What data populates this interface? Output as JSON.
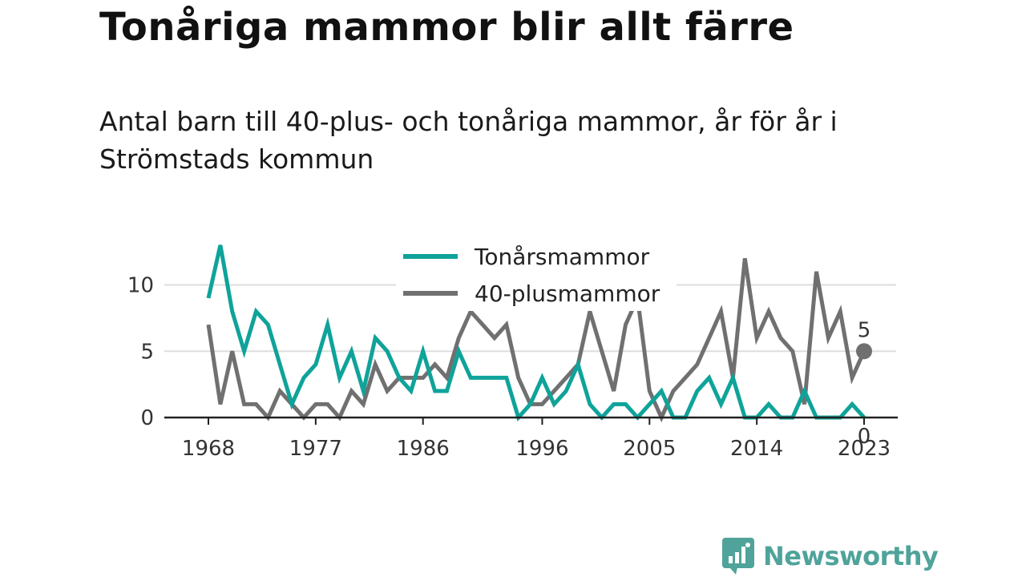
{
  "title": "Tonåriga mammor blir allt färre",
  "subtitle": "Antal barn till 40-plus- och tonåriga mammor, år för år i Strömstads kommun",
  "brand": {
    "name": "Newsworthy",
    "color": "#4fa39a",
    "icon": "chart-bubble-icon"
  },
  "chart_data": {
    "type": "line",
    "title": "",
    "xlabel": "",
    "ylabel": "",
    "x": [
      1968,
      1969,
      1970,
      1971,
      1972,
      1973,
      1974,
      1975,
      1976,
      1977,
      1978,
      1979,
      1980,
      1981,
      1982,
      1983,
      1984,
      1985,
      1986,
      1987,
      1988,
      1989,
      1990,
      1991,
      1992,
      1993,
      1994,
      1995,
      1996,
      1997,
      1998,
      1999,
      2000,
      2001,
      2002,
      2003,
      2004,
      2005,
      2006,
      2007,
      2008,
      2009,
      2010,
      2011,
      2012,
      2013,
      2014,
      2015,
      2016,
      2017,
      2018,
      2019,
      2020,
      2021,
      2022,
      2023
    ],
    "xticks": [
      "1968",
      "1977",
      "1986",
      "1996",
      "2005",
      "2014",
      "2023"
    ],
    "yticks": [
      "0",
      "5",
      "10"
    ],
    "ylim": [
      0,
      13
    ],
    "grid": true,
    "legend_position": "top-center",
    "series": [
      {
        "name": "Tonårsmammor",
        "color": "#0fa39a",
        "values": [
          9,
          13,
          8,
          5,
          8,
          7,
          4,
          1,
          3,
          4,
          7,
          3,
          5,
          2,
          6,
          5,
          3,
          2,
          5,
          2,
          2,
          5,
          3,
          3,
          3,
          3,
          0,
          1,
          3,
          1,
          2,
          4,
          1,
          0,
          1,
          1,
          0,
          1,
          2,
          0,
          0,
          2,
          3,
          1,
          3,
          0,
          0,
          1,
          0,
          0,
          2,
          0,
          0,
          0,
          1,
          0
        ],
        "end_label": "0"
      },
      {
        "name": "40-plusmammor",
        "color": "#707070",
        "values": [
          7,
          1,
          5,
          1,
          1,
          0,
          2,
          1,
          0,
          1,
          1,
          0,
          2,
          1,
          4,
          2,
          3,
          3,
          3,
          4,
          3,
          6,
          8,
          7,
          6,
          7,
          3,
          1,
          1,
          2,
          3,
          4,
          8,
          5,
          2,
          7,
          9,
          2,
          0,
          2,
          3,
          4,
          6,
          8,
          3,
          12,
          6,
          8,
          6,
          5,
          1,
          11,
          6,
          8,
          3,
          5
        ],
        "end_label": "5"
      }
    ]
  }
}
